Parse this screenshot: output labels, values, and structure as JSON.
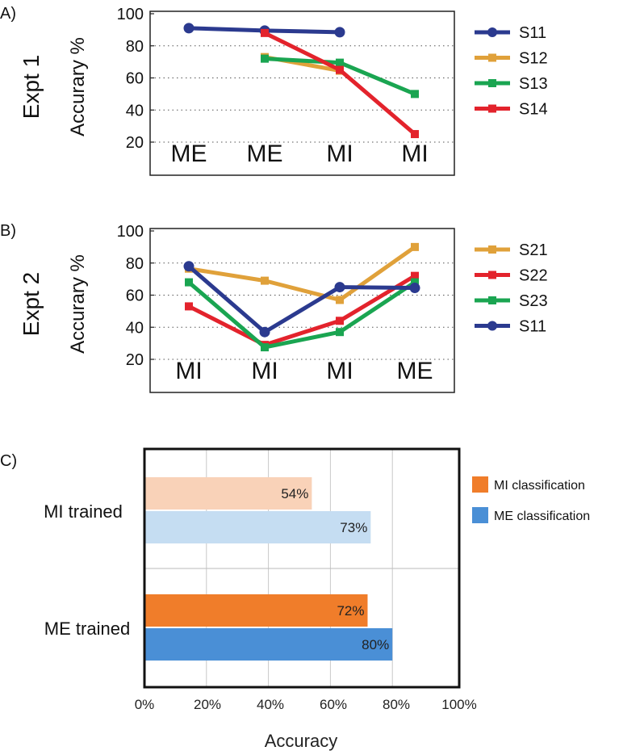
{
  "chart_data": [
    {
      "id": "A",
      "type": "line",
      "panel_label": "A)",
      "row_label": "Expt 1",
      "ylabel": "Accurary %",
      "ylim": [
        0,
        100
      ],
      "yticks": [
        20,
        40,
        60,
        80,
        100
      ],
      "categories": [
        "ME",
        "ME",
        "MI",
        "MI"
      ],
      "grid": "horizontal dotted",
      "legend_position": "right",
      "series": [
        {
          "name": "S11",
          "marker": "circle",
          "color": "#2b3a8f",
          "values": [
            91,
            89.5,
            88.5,
            null
          ]
        },
        {
          "name": "S12",
          "marker": "square",
          "color": "#e0a13a",
          "values": [
            null,
            73,
            64.5,
            null
          ]
        },
        {
          "name": "S13",
          "marker": "square",
          "color": "#1aa551",
          "values": [
            null,
            72,
            69.5,
            50
          ]
        },
        {
          "name": "S14",
          "marker": "square",
          "color": "#e3232c",
          "values": [
            null,
            88,
            65,
            25
          ]
        }
      ]
    },
    {
      "id": "B",
      "type": "line",
      "panel_label": "B)",
      "row_label": "Expt 2",
      "ylabel": "Accurary %",
      "ylim": [
        0,
        100
      ],
      "yticks": [
        20,
        40,
        60,
        80,
        100
      ],
      "categories": [
        "MI",
        "MI",
        "MI",
        "ME"
      ],
      "grid": "horizontal dotted",
      "legend_position": "right",
      "series": [
        {
          "name": "S21",
          "marker": "square",
          "color": "#e0a13a",
          "values": [
            76.5,
            69,
            57,
            90
          ]
        },
        {
          "name": "S22",
          "marker": "square",
          "color": "#e3232c",
          "values": [
            53,
            29,
            44,
            72
          ]
        },
        {
          "name": "S23",
          "marker": "square",
          "color": "#1aa551",
          "values": [
            68,
            27.5,
            37,
            68
          ]
        },
        {
          "name": "S11",
          "marker": "circle",
          "color": "#2b3a8f",
          "values": [
            78,
            37,
            65,
            64.5
          ]
        }
      ]
    },
    {
      "id": "C",
      "type": "bar",
      "orientation": "horizontal",
      "panel_label": "C)",
      "categories": [
        "MI trained",
        "ME trained"
      ],
      "xlabel": "Accuracy",
      "xlim": [
        0,
        100
      ],
      "xticks": [
        "0%",
        "20%",
        "40%",
        "60%",
        "80%",
        "100%"
      ],
      "grid": "vertical",
      "legend_position": "right",
      "series": [
        {
          "name": "MI classification",
          "color": "#f07d2a",
          "values": [
            54,
            72
          ],
          "labels": [
            "54%",
            "72%"
          ]
        },
        {
          "name": "ME classification",
          "color": "#4a8fd6",
          "values": [
            73,
            80
          ],
          "labels": [
            "73%",
            "80%"
          ]
        }
      ]
    }
  ]
}
